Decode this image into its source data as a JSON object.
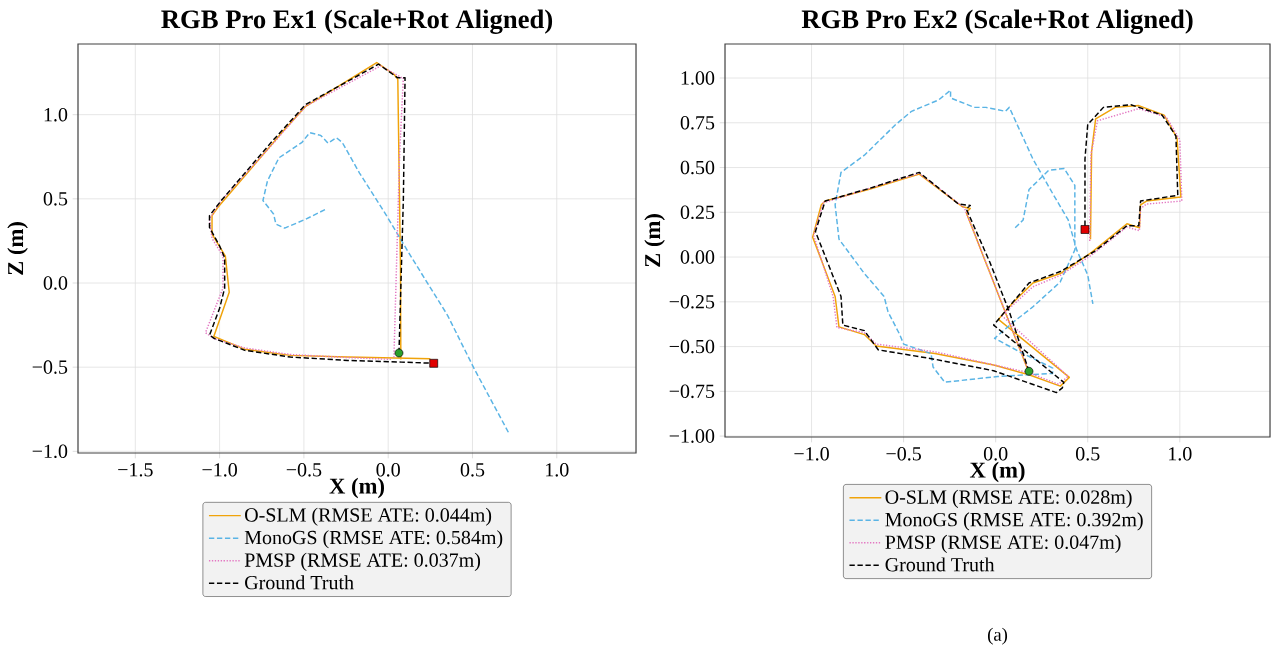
{
  "chart_data": [
    {
      "type": "line",
      "title": "RGB Pro Ex1 (Scale+Rot Aligned)",
      "xlabel": "X (m)",
      "ylabel": "Z (m)",
      "xlim": [
        -1.84,
        1.47
      ],
      "ylim": [
        -1.01,
        1.42
      ],
      "xticks": [
        {
          "value": -1.5,
          "label": "−1.5"
        },
        {
          "value": -1.0,
          "label": "−1.0"
        },
        {
          "value": -0.5,
          "label": "−0.5"
        },
        {
          "value": 0.0,
          "label": "0.0"
        },
        {
          "value": 0.5,
          "label": "0.5"
        },
        {
          "value": 1.0,
          "label": "1.0"
        }
      ],
      "yticks": [
        {
          "value": -1.0,
          "label": "−1.0"
        },
        {
          "value": -0.5,
          "label": "−0.5"
        },
        {
          "value": 0.0,
          "label": "0.0"
        },
        {
          "value": 0.5,
          "label": "0.5"
        },
        {
          "value": 1.0,
          "label": "1.0"
        }
      ],
      "grid": true,
      "legend": "bottom",
      "series": [
        {
          "name": "O-SLM (RMSE ATE: 0.044m)",
          "color": "#f0a30a",
          "line_style": "solid",
          "x": [
            0.075,
            0.073,
            0.057,
            0.034,
            -0.068,
            -0.489,
            -0.625,
            -1.01,
            -1.045,
            -1.045,
            -0.966,
            -0.943,
            -1.034,
            -0.852,
            -0.58,
            -0.24,
            0.25
          ],
          "values": [
            -0.454,
            0.08,
            1.21,
            1.24,
            1.31,
            1.05,
            0.9,
            0.45,
            0.4,
            0.29,
            0.16,
            -0.055,
            -0.317,
            -0.393,
            -0.43,
            -0.44,
            -0.45
          ]
        },
        {
          "name": "MonoGS (RMSE ATE: 0.584m)",
          "color": "#5ab4e5",
          "line_style": "dashed",
          "x": [
            -0.375,
            -0.489,
            -0.614,
            -0.666,
            -0.68,
            -0.743,
            -0.716,
            -0.648,
            -0.511,
            -0.466,
            -0.4,
            -0.357,
            -0.307,
            -0.273,
            -0.17,
            -0.011,
            0.125,
            0.352,
            0.511,
            0.72
          ],
          "values": [
            0.436,
            0.379,
            0.326,
            0.35,
            0.41,
            0.49,
            0.607,
            0.744,
            0.836,
            0.893,
            0.877,
            0.831,
            0.863,
            0.836,
            0.653,
            0.402,
            0.174,
            -0.192,
            -0.511,
            -0.9
          ]
        },
        {
          "name": "PMSP (RMSE ATE: 0.037m)",
          "color": "#e377c2",
          "line_style": "dotted",
          "x": [
            0.034,
            0.068,
            0.09,
            0.08,
            -0.045,
            -0.49,
            -0.69,
            -0.99,
            -1.06,
            -1.045,
            -0.98,
            -0.98,
            -1.084,
            -1.034,
            -0.85,
            -0.58,
            -0.24,
            0.023
          ],
          "values": [
            -0.443,
            0.77,
            1.22,
            1.22,
            1.29,
            1.05,
            0.82,
            0.49,
            0.38,
            0.265,
            0.16,
            -0.03,
            -0.295,
            -0.33,
            -0.386,
            -0.425,
            -0.443,
            -0.454
          ]
        },
        {
          "name": "Ground Truth",
          "color": "#000000",
          "line_style": "dashed",
          "x": [
            0.064,
            0.07,
            0.09,
            0.1,
            0.055,
            -0.057,
            -0.49,
            -0.69,
            -0.99,
            -1.06,
            -1.06,
            -1.0,
            -0.97,
            -0.97,
            -1.0,
            -1.06,
            -1.03,
            -0.85,
            -0.58,
            -0.24,
            0.08,
            0.27
          ],
          "values": [
            -0.416,
            -0.2,
            0.5,
            1.22,
            1.22,
            1.3,
            1.06,
            0.84,
            0.49,
            0.4,
            0.33,
            0.22,
            0.15,
            -0.03,
            -0.15,
            -0.31,
            -0.33,
            -0.4,
            -0.44,
            -0.46,
            -0.47,
            -0.477
          ]
        },
        {
          "type": "scatter",
          "color": "#2ca02c",
          "marker": "circle",
          "x": [
            0.064
          ],
          "values": [
            -0.416
          ]
        },
        {
          "type": "scatter",
          "color": "#e00000",
          "marker": "square",
          "x": [
            0.27
          ],
          "values": [
            -0.477
          ]
        }
      ]
    },
    {
      "type": "line",
      "title": "RGB Pro Ex2 (Scale+Rot Aligned)",
      "xlabel": "X (m)",
      "ylabel": "Z (m)",
      "xlim": [
        -1.47,
        1.49
      ],
      "ylim": [
        -1.005,
        1.19
      ],
      "xticks": [
        {
          "value": -1.0,
          "label": "−1.0"
        },
        {
          "value": -0.5,
          "label": "−0.5"
        },
        {
          "value": 0.0,
          "label": "0.0"
        },
        {
          "value": 0.5,
          "label": "0.5"
        },
        {
          "value": 1.0,
          "label": "1.0"
        }
      ],
      "yticks": [
        {
          "value": -1.0,
          "label": "−1.00"
        },
        {
          "value": -0.75,
          "label": "−0.75"
        },
        {
          "value": -0.5,
          "label": "−0.50"
        },
        {
          "value": -0.25,
          "label": "−0.25"
        },
        {
          "value": 0.0,
          "label": "0.00"
        },
        {
          "value": 0.25,
          "label": "0.25"
        },
        {
          "value": 0.5,
          "label": "0.50"
        },
        {
          "value": 0.75,
          "label": "0.75"
        },
        {
          "value": 1.0,
          "label": "1.00"
        }
      ],
      "grid": true,
      "legend": "bottom",
      "annotations": [
        "(a)"
      ],
      "series": [
        {
          "name": "O-SLM (RMSE ATE: 0.028m)",
          "color": "#f0a30a",
          "line_style": "solid",
          "x": [
            0.515,
            0.521,
            0.543,
            0.649,
            0.777,
            0.915,
            0.985,
            1.006,
            0.819,
            0.787,
            0.781,
            0.713,
            0.521,
            0.351,
            0.202,
            0.096,
            0.015,
            0.4,
            0.351,
            0.181,
            -0.011,
            -0.33,
            -0.649,
            -0.713,
            -0.851,
            -0.872,
            -0.994,
            -0.947,
            -0.926,
            -0.691,
            -0.415,
            -0.181,
            -0.138,
            -0.16,
            0.181
          ],
          "values": [
            0.1,
            0.59,
            0.772,
            0.836,
            0.846,
            0.793,
            0.665,
            0.335,
            0.313,
            0.292,
            0.164,
            0.186,
            0.026,
            -0.092,
            -0.145,
            -0.252,
            -0.348,
            -0.672,
            -0.721,
            -0.657,
            -0.603,
            -0.539,
            -0.497,
            -0.433,
            -0.39,
            -0.22,
            0.111,
            0.292,
            0.313,
            0.377,
            0.463,
            0.281,
            0.271,
            0.249,
            -0.646
          ]
        },
        {
          "name": "MonoGS (RMSE ATE: 0.392m)",
          "color": "#5ab4e5",
          "line_style": "dashed",
          "x": [
            0.106,
            0.149,
            0.181,
            0.287,
            0.372,
            0.43,
            0.43,
            0.35,
            0.2,
            0.1,
            -0.006,
            0.15,
            0.31,
            0.309,
            0.011,
            -0.277,
            -0.34,
            -0.351,
            -0.5,
            -0.521,
            -0.585,
            -0.606,
            -0.713,
            -0.851,
            -0.872,
            -0.84,
            -0.713,
            -0.543,
            -0.457,
            -0.309,
            -0.245,
            -0.245,
            -0.117,
            -0.053,
            0.053,
            0.074,
            0.202,
            0.309,
            0.394,
            0.44,
            0.5,
            0.528
          ],
          "values": [
            0.164,
            0.207,
            0.377,
            0.484,
            0.495,
            0.4,
            0.04,
            -0.14,
            -0.28,
            -0.36,
            -0.454,
            -0.54,
            -0.62,
            -0.65,
            -0.667,
            -0.699,
            -0.614,
            -0.539,
            -0.486,
            -0.433,
            -0.305,
            -0.22,
            -0.092,
            0.1,
            0.292,
            0.473,
            0.569,
            0.74,
            0.814,
            0.878,
            0.932,
            0.889,
            0.836,
            0.836,
            0.814,
            0.836,
            0.548,
            0.356,
            0.207,
            0.04,
            -0.1,
            -0.262
          ]
        },
        {
          "name": "PMSP (RMSE ATE: 0.047m)",
          "color": "#e377c2",
          "line_style": "dotted",
          "x": [
            0.511,
            0.517,
            0.553,
            0.777,
            0.926,
            1.0,
            1.011,
            0.819,
            0.787,
            0.781,
            0.713,
            0.521,
            0.351,
            0.202,
            0.032,
            0.394,
            0.34,
            0.181,
            -0.33,
            -0.649,
            -0.713,
            -0.862,
            -0.883,
            -0.989,
            -0.936,
            -0.691,
            -0.415,
            -0.17,
            0.181
          ],
          "values": [
            0.09,
            0.569,
            0.761,
            0.829,
            0.783,
            0.655,
            0.313,
            0.296,
            0.271,
            0.147,
            0.168,
            0.011,
            -0.102,
            -0.166,
            -0.326,
            -0.667,
            -0.71,
            -0.646,
            -0.529,
            -0.486,
            -0.422,
            -0.394,
            -0.22,
            0.122,
            0.303,
            0.382,
            0.467,
            0.275,
            -0.642
          ]
        },
        {
          "name": "Ground Truth",
          "color": "#000000",
          "line_style": "dashed",
          "x": [
            0.181,
            0.074,
            -0.032,
            -0.16,
            -0.138,
            -0.202,
            -0.415,
            -0.691,
            -0.926,
            -0.979,
            -0.84,
            -0.83,
            -0.713,
            -0.638,
            -0.33,
            -0.011,
            0.33,
            0.362,
            0.37,
            -0.011,
            0.03,
            0.181,
            0.351,
            0.543,
            0.713,
            0.777,
            0.787,
            0.989,
            0.979,
            0.904,
            0.734,
            0.585,
            0.5,
            0.485,
            0.485
          ],
          "values": [
            -0.638,
            -0.305,
            -0.028,
            0.27,
            0.288,
            0.296,
            0.473,
            0.382,
            0.313,
            0.143,
            -0.22,
            -0.38,
            -0.411,
            -0.518,
            -0.571,
            -0.635,
            -0.757,
            -0.731,
            -0.7,
            -0.38,
            -0.33,
            -0.145,
            -0.081,
            0.036,
            0.175,
            0.175,
            0.313,
            0.345,
            0.676,
            0.793,
            0.851,
            0.836,
            0.74,
            0.548,
            0.154
          ]
        },
        {
          "type": "scatter",
          "color": "#2ca02c",
          "marker": "circle",
          "x": [
            0.181
          ],
          "values": [
            -0.638
          ]
        },
        {
          "type": "scatter",
          "color": "#e00000",
          "marker": "square",
          "x": [
            0.485
          ],
          "values": [
            0.154
          ]
        }
      ]
    }
  ]
}
